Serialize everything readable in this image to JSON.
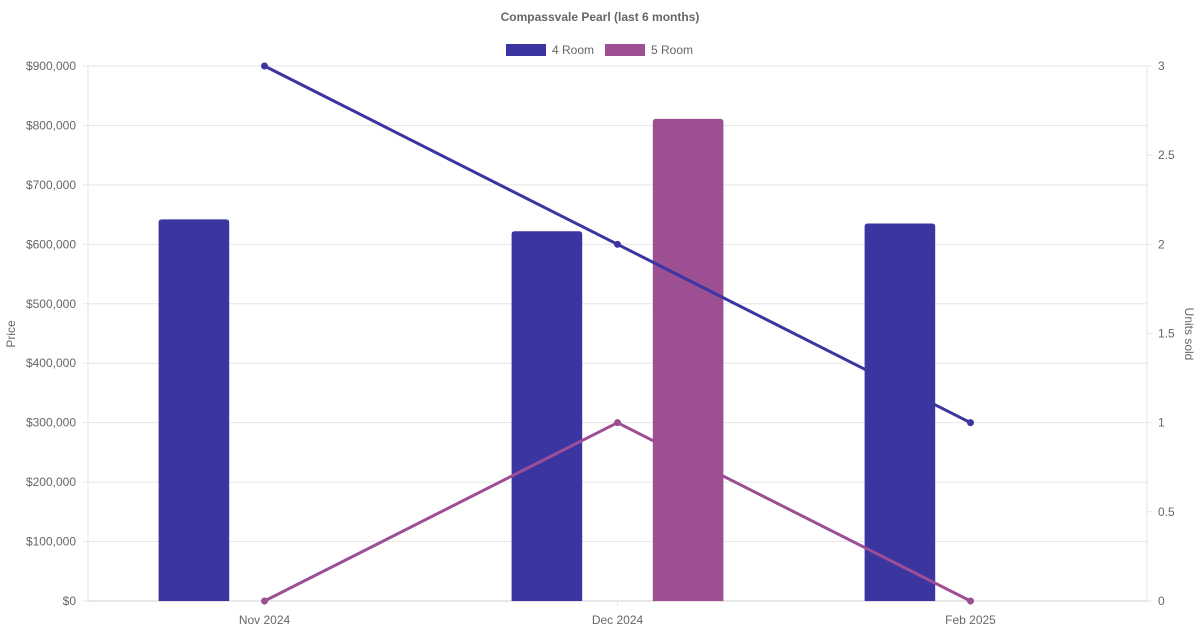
{
  "chart_data": {
    "type": "bar",
    "title": "Compassvale Pearl (last 6 months)",
    "categories": [
      "Nov 2024",
      "Dec 2024",
      "Feb 2025"
    ],
    "y_left": {
      "label": "Price",
      "min": 0,
      "max": 900000,
      "ticks": [
        "$0",
        "$100,000",
        "$200,000",
        "$300,000",
        "$400,000",
        "$500,000",
        "$600,000",
        "$700,000",
        "$800,000",
        "$900,000"
      ]
    },
    "y_right": {
      "label": "Units sold",
      "min": 0,
      "max": 3,
      "ticks": [
        "0",
        "0.5",
        "1",
        "1.5",
        "2",
        "2.5",
        "3"
      ]
    },
    "legend": {
      "placement": "top",
      "entries": [
        "4 Room",
        "5 Room"
      ]
    },
    "grid": true,
    "series": [
      {
        "name": "4 Room",
        "kind": "bar",
        "axis": "left",
        "color": "#3a35a0",
        "values": [
          642000,
          622000,
          635000
        ]
      },
      {
        "name": "5 Room",
        "kind": "bar",
        "axis": "left",
        "color": "#9c4f93",
        "values": [
          null,
          811000,
          null
        ]
      },
      {
        "name": "4 Room",
        "kind": "line",
        "axis": "right",
        "color": "#3a35a0",
        "values": [
          3,
          2,
          1
        ]
      },
      {
        "name": "5 Room",
        "kind": "line",
        "axis": "right",
        "color": "#9c4f93",
        "values": [
          0,
          1,
          0
        ]
      }
    ]
  }
}
